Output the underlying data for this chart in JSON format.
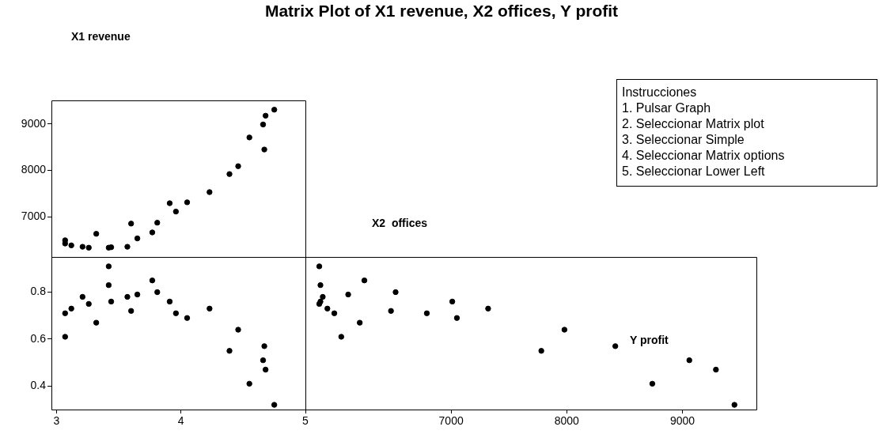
{
  "chart_data": [
    {
      "type": "scatter",
      "title": "Matrix Plot of X1 revenue, X2 offices, Y profit",
      "annotations": [
        "X1 revenue",
        "X2  offices"
      ],
      "marker": "circle",
      "grid": false,
      "tick_labels": "y",
      "xlim": [
        2.96,
        5.0
      ],
      "ylim": [
        6130,
        9510
      ],
      "yticks": [
        7000,
        8000,
        9000
      ],
      "series": [
        {
          "color": "#000000",
          "x": [
            3.07,
            3.07,
            3.12,
            3.21,
            3.26,
            3.32,
            3.42,
            3.44,
            3.57,
            3.6,
            3.65,
            3.77,
            3.81,
            3.91,
            3.96,
            4.05,
            4.23,
            4.39,
            4.46,
            4.55,
            4.66,
            4.67,
            4.68,
            4.75
          ],
          "values": [
            6490,
            6420,
            6380,
            6350,
            6330,
            6630,
            6330,
            6340,
            6350,
            6850,
            6530,
            6660,
            6870,
            7290,
            7110,
            7310,
            7530,
            7920,
            8090,
            8710,
            8990,
            8450,
            9180,
            9310
          ]
        }
      ]
    },
    {
      "type": "scatter",
      "marker": "circle",
      "grid": false,
      "xlim": [
        2.96,
        5.0
      ],
      "ylim": [
        0.3,
        0.95
      ],
      "xticks": [
        3,
        4,
        5
      ],
      "yticks": [
        0.4,
        0.6,
        0.8
      ],
      "series": [
        {
          "color": "#000000",
          "x": [
            3.07,
            3.07,
            3.12,
            3.21,
            3.26,
            3.32,
            3.42,
            3.42,
            3.44,
            3.57,
            3.6,
            3.65,
            3.77,
            3.81,
            3.91,
            3.96,
            4.05,
            4.23,
            4.39,
            4.46,
            4.55,
            4.66,
            4.67,
            4.68,
            4.75
          ],
          "values": [
            0.71,
            0.61,
            0.73,
            0.78,
            0.75,
            0.67,
            0.91,
            0.83,
            0.76,
            0.78,
            0.72,
            0.79,
            0.85,
            0.8,
            0.76,
            0.71,
            0.69,
            0.73,
            0.55,
            0.64,
            0.41,
            0.51,
            0.57,
            0.47,
            0.32
          ]
        }
      ]
    },
    {
      "type": "scatter",
      "annotations": [
        "Y profit"
      ],
      "marker": "circle",
      "grid": false,
      "tick_labels": "x",
      "xlim": [
        5740,
        9640
      ],
      "ylim": [
        0.3,
        0.95
      ],
      "xticks": [
        7000,
        8000,
        9000
      ],
      "series": [
        {
          "color": "#000000",
          "x": [
            5860,
            5870,
            5890,
            5870,
            5860,
            5930,
            5990,
            6050,
            6110,
            6250,
            6210,
            6520,
            6480,
            6790,
            7010,
            7050,
            7320,
            7780,
            7980,
            8420,
            8740,
            9060,
            9290,
            9450
          ],
          "values": [
            0.91,
            0.83,
            0.78,
            0.76,
            0.75,
            0.73,
            0.71,
            0.61,
            0.79,
            0.85,
            0.67,
            0.8,
            0.72,
            0.71,
            0.76,
            0.69,
            0.73,
            0.55,
            0.64,
            0.57,
            0.41,
            0.51,
            0.47,
            0.32
          ]
        }
      ]
    },
    {
      "type": "other",
      "title": "Instrucciones",
      "annotations": [
        "1. Pulsar Graph",
        "2. Seleccionar Matrix plot",
        "3. Seleccionar Simple",
        "4. Seleccionar Matrix options",
        "5. Seleccionar Lower Left"
      ]
    }
  ]
}
